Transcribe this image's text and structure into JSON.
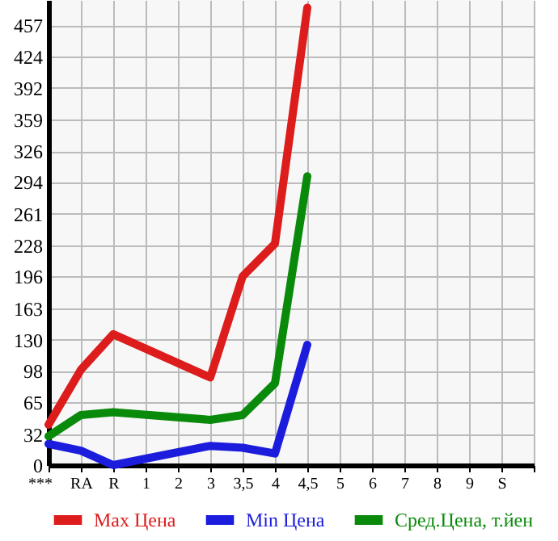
{
  "chart_data": {
    "type": "line",
    "categories": [
      "***",
      "RA",
      "R",
      "1",
      "2",
      "3",
      "3,5",
      "4",
      "4,5",
      "5",
      "6",
      "7",
      "8",
      "9",
      "S"
    ],
    "series": [
      {
        "name": "Max Цена",
        "color": "#dd1c1c",
        "values": [
          42,
          99,
          136,
          null,
          null,
          91,
          196,
          230,
          475,
          null,
          null,
          null,
          null,
          null,
          null
        ]
      },
      {
        "name": "Min Цена",
        "color": "#1c1cdd",
        "values": [
          22,
          15,
          0,
          null,
          null,
          20,
          18,
          12,
          125,
          null,
          null,
          null,
          null,
          null,
          null
        ]
      },
      {
        "name": "Сред.Цена, т.йен",
        "color": "#0a8a0a",
        "values": [
          30,
          52,
          55,
          null,
          null,
          47,
          52,
          85,
          300,
          null,
          null,
          null,
          null,
          null,
          null
        ]
      }
    ],
    "ylim": [
      0,
      483
    ],
    "yticks": [
      0,
      32,
      65,
      98,
      130,
      163,
      196,
      228,
      261,
      294,
      326,
      359,
      392,
      424,
      457
    ],
    "grid": true,
    "legend": "bottom",
    "line_style": "solid"
  }
}
